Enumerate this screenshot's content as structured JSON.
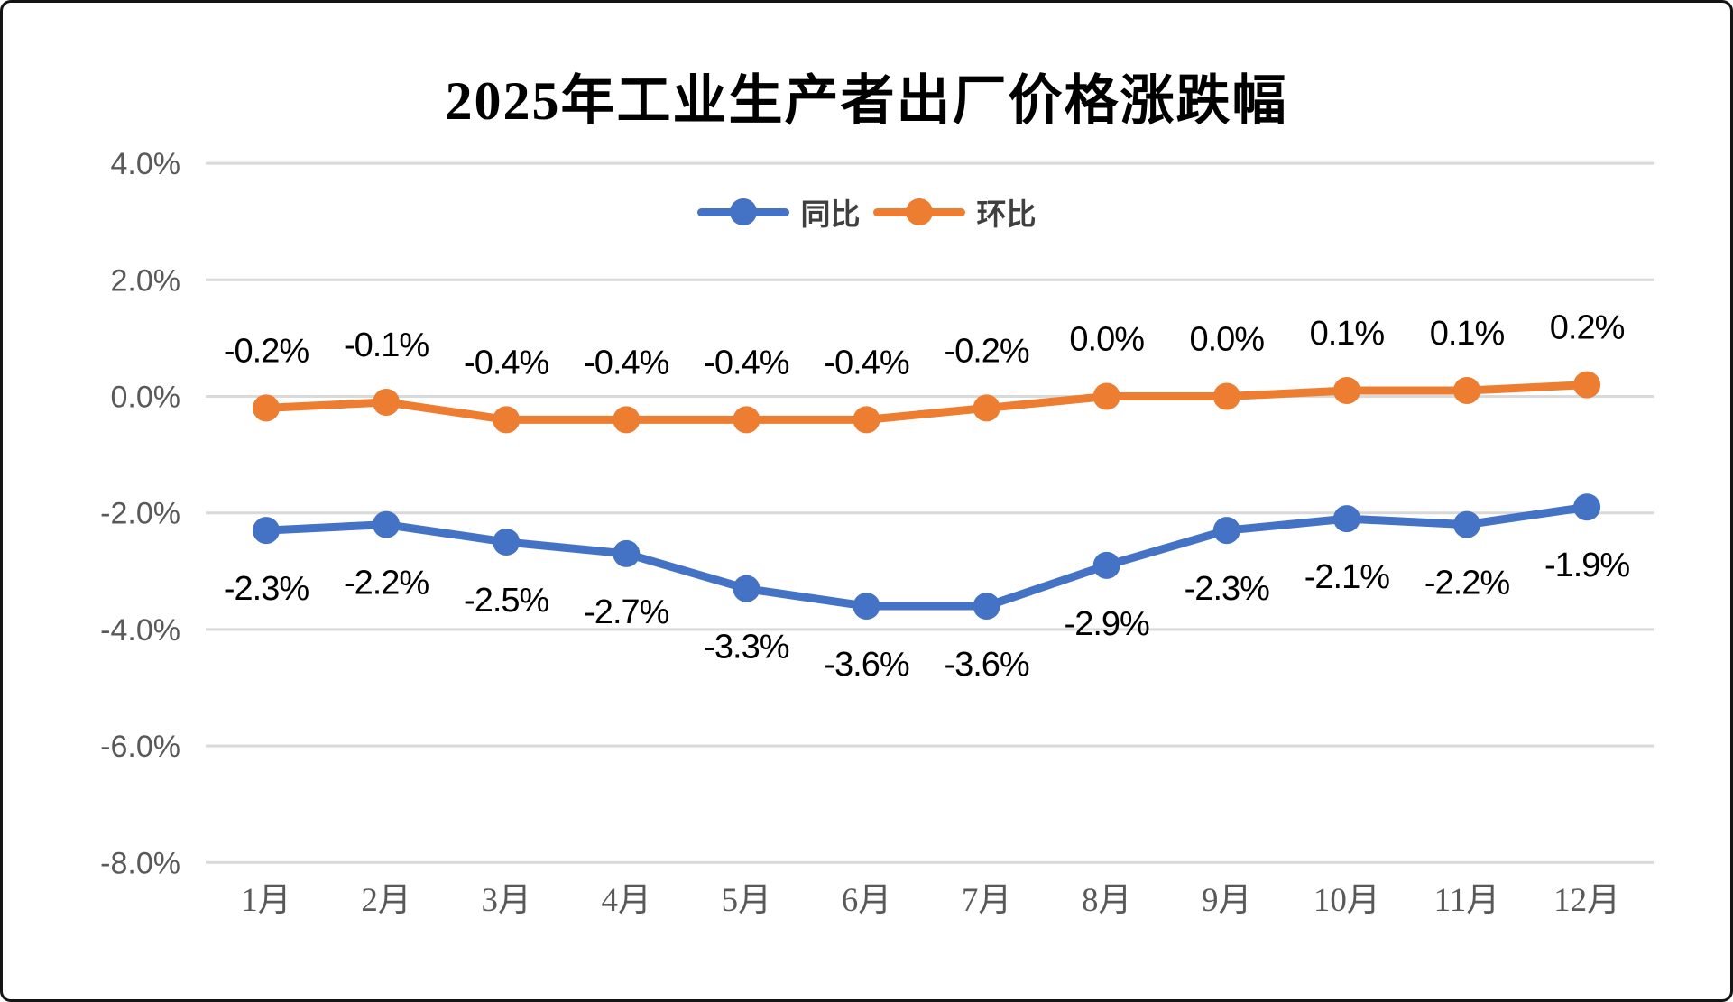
{
  "chart_data": {
    "type": "line",
    "title": "2025年工业生产者出厂价格涨跌幅",
    "categories": [
      "1月",
      "2月",
      "3月",
      "4月",
      "5月",
      "6月",
      "7月",
      "8月",
      "9月",
      "10月",
      "11月",
      "12月"
    ],
    "series": [
      {
        "name": "同比",
        "color": "#4472C4",
        "values": [
          -2.3,
          -2.2,
          -2.5,
          -2.7,
          -3.3,
          -3.6,
          -3.6,
          -2.9,
          -2.3,
          -2.1,
          -2.2,
          -1.9
        ],
        "labels": [
          "-2.3%",
          "-2.2%",
          "-2.5%",
          "-2.7%",
          "-3.3%",
          "-3.6%",
          "-3.6%",
          "-2.9%",
          "-2.3%",
          "-2.1%",
          "-2.2%",
          "-1.9%"
        ],
        "label_position": "below"
      },
      {
        "name": "环比",
        "color": "#ED7D31",
        "values": [
          -0.2,
          -0.1,
          -0.4,
          -0.4,
          -0.4,
          -0.4,
          -0.2,
          0.0,
          0.0,
          0.1,
          0.1,
          0.2
        ],
        "labels": [
          "-0.2%",
          "-0.1%",
          "-0.4%",
          "-0.4%",
          "-0.4%",
          "-0.4%",
          "-0.2%",
          "0.0%",
          "0.0%",
          "0.1%",
          "0.1%",
          "0.2%"
        ],
        "label_position": "above"
      }
    ],
    "y_axis": {
      "min": -8,
      "max": 4,
      "step": 2,
      "tick_labels": [
        "4.0%",
        "2.0%",
        "0.0%",
        "-2.0%",
        "-4.0%",
        "-6.0%",
        "-8.0%"
      ]
    },
    "xlabel": "",
    "ylabel": "",
    "grid": true,
    "legend_position": "top-center",
    "colors": {
      "gridline": "#D9D9D9",
      "axis_text": "#595959",
      "data_label_text": "#000000",
      "title_text": "#000000",
      "legend_text": "#3f3f3f",
      "background": "#FFFFFF"
    }
  }
}
